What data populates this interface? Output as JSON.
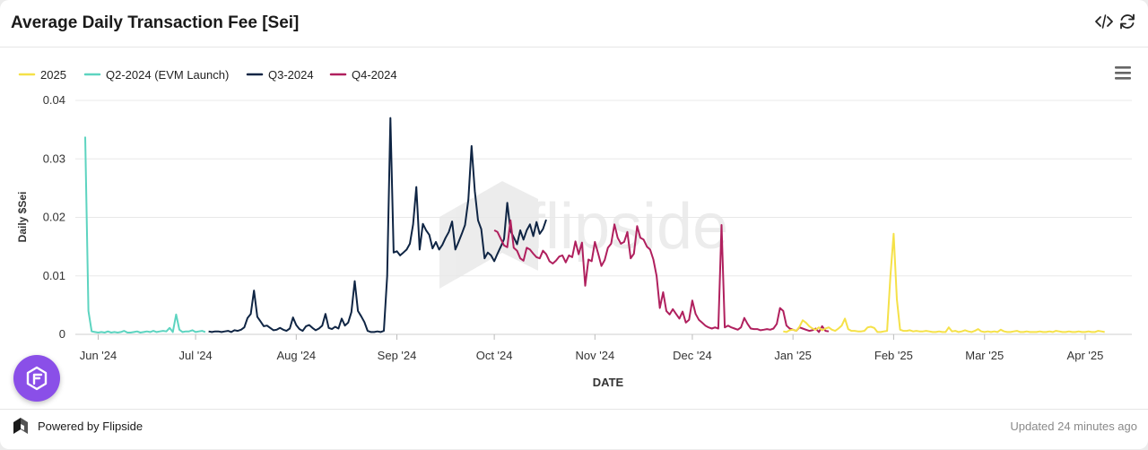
{
  "header": {
    "title": "Average Daily Transaction Fee [Sei]",
    "embed_icon": "code-icon",
    "refresh_icon": "refresh-icon"
  },
  "menu_icon": "hamburger-menu-icon",
  "watermark": "flipside",
  "footer": {
    "powered_by": "Powered by Flipside",
    "updated": "Updated 24 minutes ago"
  },
  "chart_data": {
    "type": "line",
    "title": "Average Daily Transaction Fee [Sei]",
    "xlabel": "DATE",
    "ylabel": "Daily $Sei",
    "ylim": [
      0,
      0.04
    ],
    "y_ticks": [
      "0",
      "0.01",
      "0.02",
      "0.03",
      "0.04"
    ],
    "x_ticks": [
      "Jun '24",
      "Jul '24",
      "Aug '24",
      "Sep '24",
      "Oct '24",
      "Nov '24",
      "Dec '24",
      "Jan '25",
      "Feb '25",
      "Mar '25",
      "Apr '25"
    ],
    "x_start": "2024-05-28",
    "legend": [
      "2025",
      "Q2-2024 (EVM Launch)",
      "Q3-2024",
      "Q4-2024"
    ],
    "legend_position": "top-left",
    "series": [
      {
        "name": "Q2-2024 (EVM Launch)",
        "color": "#5dd4c0",
        "start_day": 0,
        "values": [
          0.0338,
          0.004,
          0.0005,
          0.0004,
          0.0003,
          0.0004,
          0.0003,
          0.0005,
          0.0003,
          0.0004,
          0.0003,
          0.0004,
          0.0006,
          0.0003,
          0.0003,
          0.0004,
          0.0005,
          0.0003,
          0.0004,
          0.0005,
          0.0004,
          0.0006,
          0.0004,
          0.0005,
          0.0006,
          0.0005,
          0.0011,
          0.0004,
          0.0034,
          0.0008,
          0.0004,
          0.0005,
          0.0005,
          0.0007,
          0.0004,
          0.0005,
          0.0006,
          0.0004
        ]
      },
      {
        "name": "Q3-2024",
        "color": "#0f2544",
        "start_day": 38,
        "values": [
          0.0005,
          0.0004,
          0.0005,
          0.0005,
          0.0004,
          0.0005,
          0.0006,
          0.0004,
          0.0007,
          0.0006,
          0.0008,
          0.0012,
          0.0028,
          0.0035,
          0.0075,
          0.003,
          0.0022,
          0.0014,
          0.0015,
          0.0011,
          0.0007,
          0.0008,
          0.0011,
          0.0008,
          0.0006,
          0.001,
          0.0029,
          0.0016,
          0.0009,
          0.0006,
          0.0014,
          0.0016,
          0.0011,
          0.0007,
          0.001,
          0.0015,
          0.0035,
          0.0011,
          0.0009,
          0.0013,
          0.001,
          0.0027,
          0.0015,
          0.002,
          0.0038,
          0.0091,
          0.004,
          0.0031,
          0.0021,
          0.0006,
          0.0004,
          0.0004,
          0.0005,
          0.0004,
          0.0006,
          0.01,
          0.037,
          0.014,
          0.0142,
          0.0135,
          0.014,
          0.0145,
          0.0155,
          0.0188,
          0.0252,
          0.0145,
          0.0189,
          0.0178,
          0.017,
          0.0147,
          0.0158,
          0.0145,
          0.0153,
          0.0165,
          0.0175,
          0.0193,
          0.0145,
          0.0158,
          0.0172,
          0.0187,
          0.023,
          0.0322,
          0.0245,
          0.0195,
          0.018,
          0.013,
          0.014,
          0.0135,
          0.0125,
          0.0138,
          0.015,
          0.0163,
          0.0225,
          0.0177,
          0.0166,
          0.0154,
          0.0178,
          0.0162,
          0.0178,
          0.0188,
          0.0168,
          0.0192,
          0.0172,
          0.018,
          0.0196
        ]
      },
      {
        "name": "Q4-2024",
        "color": "#b0205e",
        "start_day": 126,
        "values": [
          0.0178,
          0.0175,
          0.0163,
          0.0152,
          0.0149,
          0.0195,
          0.0148,
          0.0143,
          0.013,
          0.0126,
          0.0148,
          0.0145,
          0.0138,
          0.0132,
          0.013,
          0.0143,
          0.0137,
          0.0125,
          0.0121,
          0.0126,
          0.0133,
          0.0135,
          0.0123,
          0.0135,
          0.0132,
          0.0159,
          0.0137,
          0.0157,
          0.0083,
          0.0128,
          0.0125,
          0.0158,
          0.0138,
          0.0117,
          0.0127,
          0.0148,
          0.0155,
          0.0188,
          0.0165,
          0.0155,
          0.0158,
          0.0175,
          0.013,
          0.0138,
          0.0185,
          0.0165,
          0.0162,
          0.015,
          0.0145,
          0.0128,
          0.01,
          0.0045,
          0.0072,
          0.004,
          0.0034,
          0.0043,
          0.0035,
          0.0027,
          0.0039,
          0.002,
          0.0025,
          0.0058,
          0.0035,
          0.0025,
          0.002,
          0.0015,
          0.0012,
          0.001,
          0.0012,
          0.001,
          0.0187,
          0.0012,
          0.0015,
          0.0012,
          0.001,
          0.0008,
          0.0012,
          0.0028,
          0.0018,
          0.001,
          0.0009,
          0.0009,
          0.0007,
          0.0008,
          0.0009,
          0.0008,
          0.001,
          0.0018,
          0.0045,
          0.004,
          0.0015,
          0.001,
          0.0008,
          0.0006,
          0.0012,
          0.001,
          0.0008,
          0.0006,
          0.0007,
          0.001,
          0.0004,
          0.0014,
          0.0006,
          0.0005
        ]
      },
      {
        "name": "2025",
        "color": "#f5e148",
        "start_day": 215,
        "values": [
          0.0005,
          0.0004,
          0.0007,
          0.0008,
          0.0006,
          0.0013,
          0.0024,
          0.002,
          0.0014,
          0.001,
          0.0008,
          0.0012,
          0.0007,
          0.001,
          0.0012,
          0.0008,
          0.0006,
          0.001,
          0.0015,
          0.0027,
          0.0009,
          0.0006,
          0.0006,
          0.0005,
          0.0005,
          0.0006,
          0.0012,
          0.0013,
          0.0011,
          0.0004,
          0.0004,
          0.0005,
          0.0006,
          0.01,
          0.0172,
          0.006,
          0.0008,
          0.0006,
          0.0006,
          0.0007,
          0.0005,
          0.0006,
          0.0005,
          0.0005,
          0.0006,
          0.0005,
          0.0004,
          0.0004,
          0.0005,
          0.0004,
          0.0004,
          0.0012,
          0.0005,
          0.0006,
          0.0004,
          0.0005,
          0.0007,
          0.0005,
          0.0004,
          0.0006,
          0.0009,
          0.0005,
          0.0004,
          0.0005,
          0.0004,
          0.0005,
          0.0004,
          0.0008,
          0.0005,
          0.0004,
          0.0004,
          0.0005,
          0.0006,
          0.0004,
          0.0004,
          0.0005,
          0.0004,
          0.0004,
          0.0004,
          0.0005,
          0.0004,
          0.0004,
          0.0005,
          0.0004,
          0.0006,
          0.0005,
          0.0004,
          0.0004,
          0.0005,
          0.0004,
          0.0004,
          0.0005,
          0.0004,
          0.0004,
          0.0005,
          0.0004,
          0.0004,
          0.0006,
          0.0005,
          0.0004
        ]
      }
    ]
  }
}
